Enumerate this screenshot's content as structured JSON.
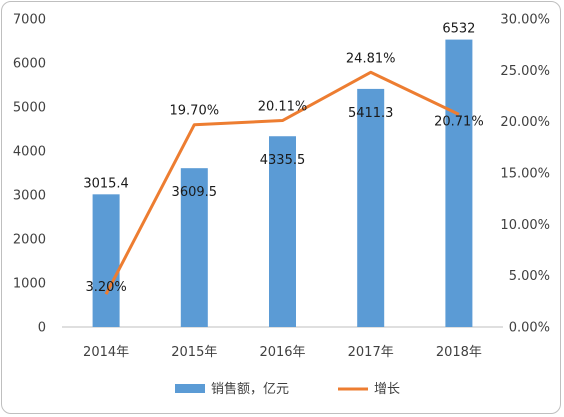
{
  "chart_data": {
    "type": "bar",
    "categories": [
      "2014年",
      "2015年",
      "2016年",
      "2017年",
      "2018年"
    ],
    "series": [
      {
        "name": "销售额，亿元",
        "type": "bar",
        "axis": "left",
        "color": "#5b9bd5",
        "values": [
          3015.4,
          3609.5,
          4335.5,
          5411.3,
          6532
        ],
        "labels": [
          "3015.4",
          "3609.5",
          "4335.5",
          "5411.3",
          "6532"
        ]
      },
      {
        "name": "增长",
        "type": "line",
        "axis": "right",
        "color": "#ed7d31",
        "values": [
          3.2,
          19.7,
          20.11,
          24.81,
          20.71
        ],
        "labels": [
          "3.20%",
          "19.70%",
          "20.11%",
          "24.81%",
          "20.71%"
        ]
      }
    ],
    "y_left": {
      "ylim": [
        0,
        7000
      ],
      "ticks": [
        "0",
        "1000",
        "2000",
        "3000",
        "4000",
        "5000",
        "6000",
        "7000"
      ]
    },
    "y_right": {
      "ylim": [
        0,
        30
      ],
      "ticks": [
        "0.00%",
        "5.00%",
        "10.00%",
        "15.00%",
        "20.00%",
        "25.00%",
        "30.00%"
      ]
    },
    "grid": false,
    "legend_position": "bottom"
  }
}
